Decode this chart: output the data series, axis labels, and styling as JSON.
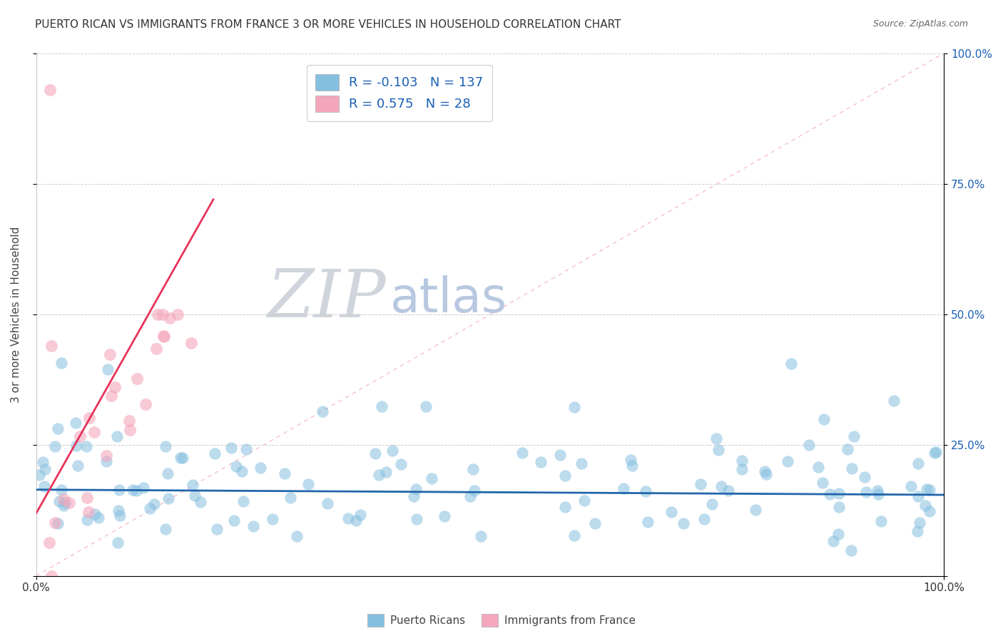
{
  "title": "PUERTO RICAN VS IMMIGRANTS FROM FRANCE 3 OR MORE VEHICLES IN HOUSEHOLD CORRELATION CHART",
  "source": "Source: ZipAtlas.com",
  "ylabel": "3 or more Vehicles in Household",
  "ylim": [
    0,
    1.0
  ],
  "xlim": [
    0,
    1.0
  ],
  "ytick_labels": [
    "",
    "25.0%",
    "50.0%",
    "75.0%",
    "100.0%"
  ],
  "ytick_values": [
    0.0,
    0.25,
    0.5,
    0.75,
    1.0
  ],
  "xtick_labels": [
    "0.0%",
    "100.0%"
  ],
  "xtick_values": [
    0.0,
    1.0
  ],
  "watermark_zip": "ZIP",
  "watermark_atlas": "atlas",
  "legend_blue_r": "-0.103",
  "legend_blue_n": "137",
  "legend_pink_r": "0.575",
  "legend_pink_n": "28",
  "blue_color": "#85bfdf",
  "pink_color": "#f4a7bc",
  "line_blue": "#2166ac",
  "line_pink": "#e8335a",
  "diag_color": "#f4b8c8",
  "background_color": "#ffffff",
  "grid_color": "#c8c8c8",
  "title_fontsize": 11,
  "source_fontsize": 9,
  "watermark_zip_color": "#d0d5dd",
  "watermark_atlas_color": "#b8c8e0",
  "watermark_fontsize": 68,
  "blue_trend_start_y": 0.165,
  "blue_trend_end_y": 0.155,
  "pink_trend_start_y": 0.12,
  "pink_trend_end_x": 0.195,
  "pink_trend_end_y": 0.72
}
